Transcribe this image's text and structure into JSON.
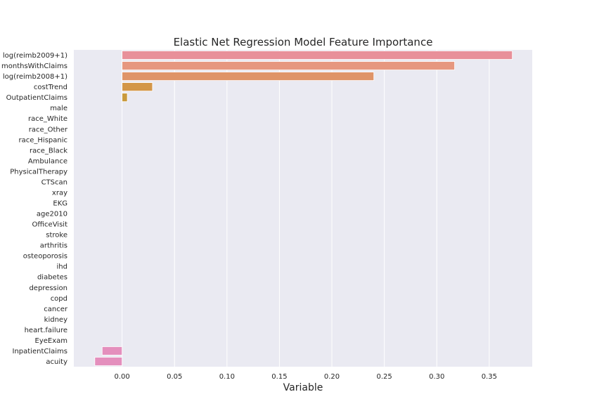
{
  "chart_data": {
    "type": "bar",
    "orientation": "horizontal",
    "title": "Elastic Net Regression Model Feature Importance",
    "xlabel": "Variable",
    "ylabel": "",
    "xlim": [
      -0.046,
      0.391
    ],
    "xticks": [
      0.0,
      0.05,
      0.1,
      0.15,
      0.2,
      0.25,
      0.3,
      0.35
    ],
    "xtick_labels": [
      "0.00",
      "0.05",
      "0.10",
      "0.15",
      "0.20",
      "0.25",
      "0.30",
      "0.35"
    ],
    "grid": true,
    "legend": "none",
    "background": "#eaeaf2",
    "categories": [
      "log(reimb2009+1)",
      "monthsWithClaims",
      "log(reimb2008+1)",
      "costTrend",
      "OutpatientClaims",
      "male",
      "race_White",
      "race_Other",
      "race_Hispanic",
      "race_Black",
      "Ambulance",
      "PhysicalTherapy",
      "CTScan",
      "xray",
      "EKG",
      "age2010",
      "OfficeVisit",
      "stroke",
      "arthritis",
      "osteoporosis",
      "ihd",
      "diabetes",
      "depression",
      "copd",
      "cancer",
      "kidney",
      "heart.failure",
      "EyeExam",
      "InpatientClaims",
      "acuity"
    ],
    "values": [
      0.372,
      0.317,
      0.24,
      0.029,
      0.005,
      0,
      0,
      0,
      0,
      0,
      0,
      0,
      0,
      0,
      0,
      0,
      0,
      0,
      0,
      0,
      0,
      0,
      0,
      0,
      0,
      0,
      0,
      0,
      -0.019,
      -0.026
    ],
    "colors": [
      "#e8909a",
      "#e6977f",
      "#df9468",
      "#d39648",
      "#c99a3d"
    ],
    "negative_colors": [
      "#e48fbd",
      "#e48fbd"
    ]
  }
}
